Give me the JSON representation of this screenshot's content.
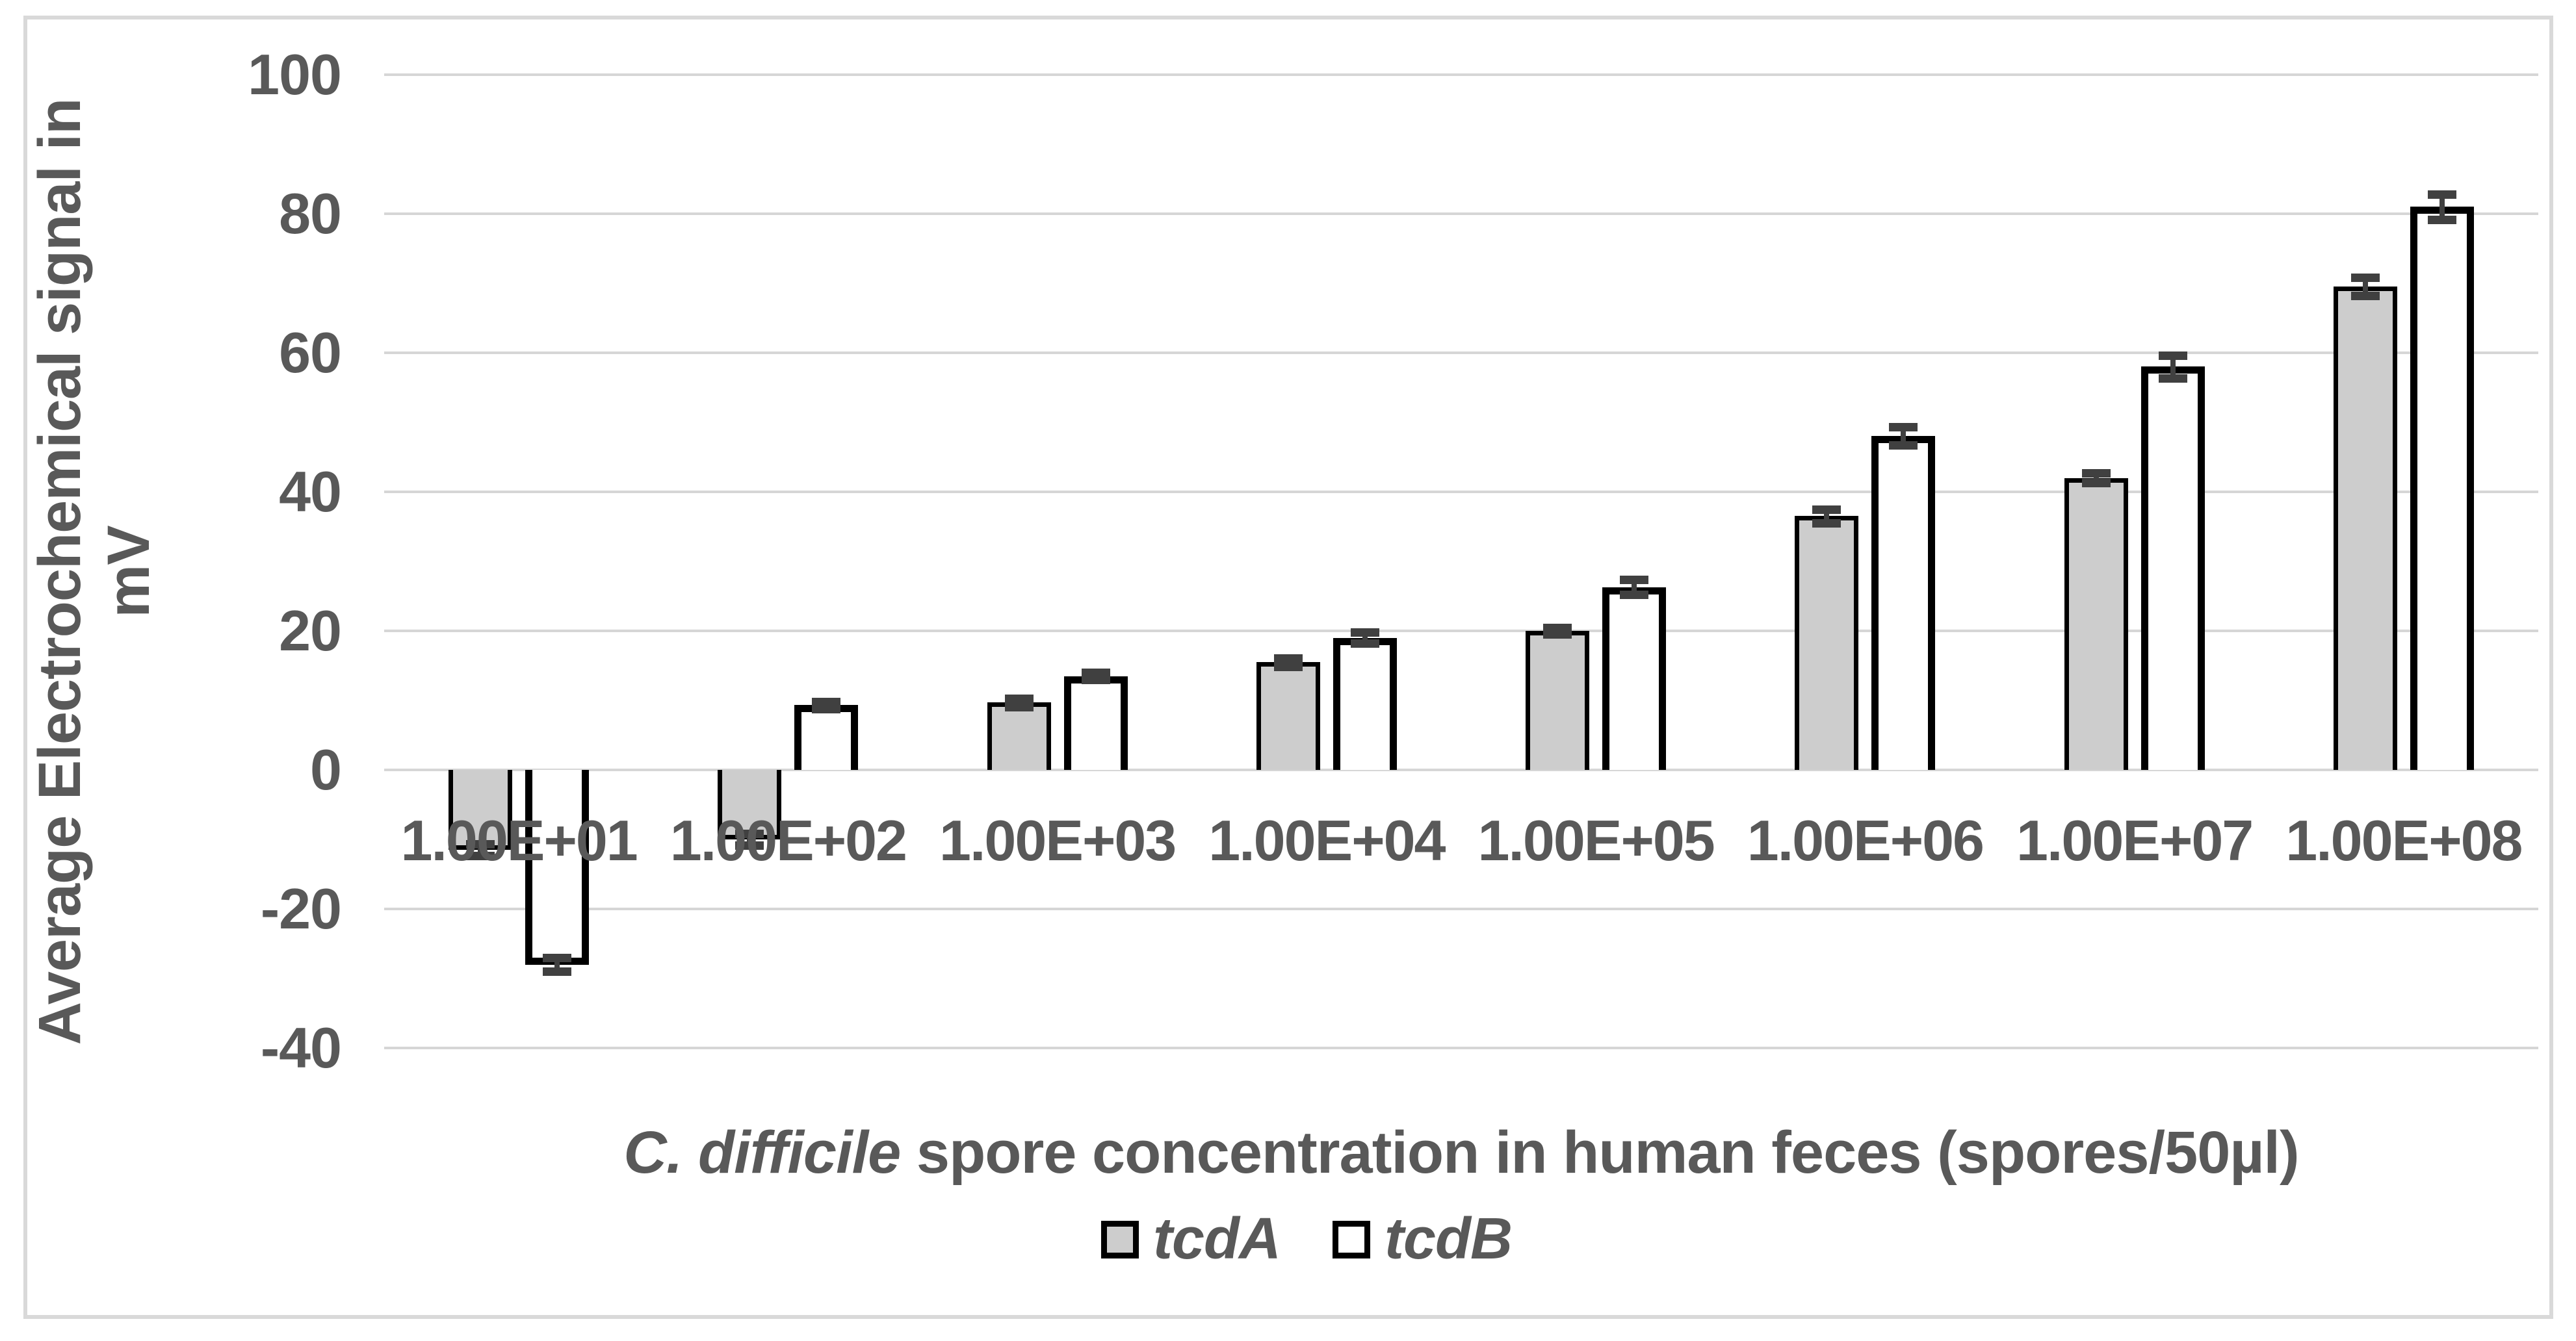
{
  "y_axis": {
    "title_line1": "Average Electrochemical signal in",
    "title_line2": "mV",
    "ticks": [
      100,
      80,
      60,
      40,
      20,
      0,
      -20,
      -40
    ]
  },
  "x_axis": {
    "title_italic": "C. difficile",
    "title_rest": " spore concentration in human feces (spores/50µl)"
  },
  "legend": {
    "items": [
      {
        "label": "tcdA",
        "swatch": "gray-filled-square"
      },
      {
        "label": "tcdB",
        "swatch": "white-square"
      }
    ]
  },
  "colors": {
    "tcdA_fill": "#cdcdcd",
    "tcdB_fill": "#ffffff",
    "bar_border": "#000000",
    "error_bar": "#404040",
    "gridline": "#d6d6d6",
    "text": "#595959",
    "frame_border": "#d9d9d9"
  },
  "chart_data": {
    "type": "bar",
    "categories": [
      "1.00E+01",
      "1.00E+02",
      "1.00E+03",
      "1.00E+04",
      "1.00E+05",
      "1.00E+06",
      "1.00E+07",
      "1.00E+08"
    ],
    "series": [
      {
        "name": "tcdA",
        "values": [
          -11.5,
          -10,
          9.7,
          15.5,
          20,
          36.5,
          42,
          69.5
        ],
        "errors": [
          0.8,
          0.8,
          0.6,
          0.6,
          0.5,
          1.0,
          0.7,
          1.3
        ],
        "fill": "#cdcdcd",
        "border_px": 7
      },
      {
        "name": "tcdB",
        "values": [
          -28,
          9.3,
          13.5,
          19,
          26.3,
          48,
          58,
          81
        ],
        "errors": [
          1.0,
          0.5,
          0.5,
          0.8,
          1.1,
          1.3,
          1.6,
          1.8
        ],
        "fill": "#ffffff",
        "border_px": 11
      }
    ],
    "title": "",
    "xlabel": "C. difficile spore concentration in human feces (spores/50µl)",
    "ylabel": "Average Electrochemical signal in mV",
    "ylim": [
      -40,
      100
    ],
    "ytick_step": 20,
    "grid": true,
    "error_bars": true,
    "legend_position": "bottom-center"
  }
}
